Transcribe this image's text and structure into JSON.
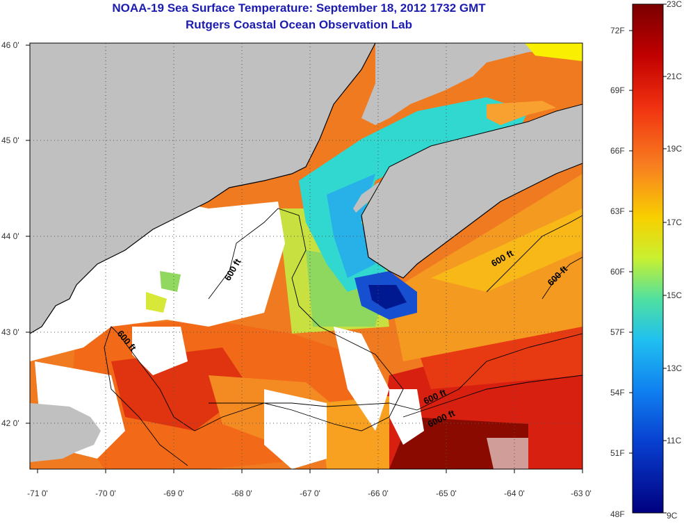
{
  "title": "NOAA-19 Sea Surface Temperature:  September 18, 2012 1732 GMT",
  "subtitle": "Rutgers Coastal Ocean Observation Lab",
  "lat_labels": [
    "46 0'",
    "45 0'",
    "44 0'",
    "43 0'",
    "42 0'"
  ],
  "lon_labels": [
    "-71 0'",
    "-70 0'",
    "-69 0'",
    "-68 0'",
    "-67 0'",
    "-66 0'",
    "-65 0'",
    "-64 0'",
    "-63 0'"
  ],
  "contour_labels": [
    "600 ft",
    "600 ft",
    "600 ft",
    "600 ft",
    "600 ft",
    "6000 ft"
  ],
  "colorbar": {
    "fahrenheit": [
      "72F",
      "69F",
      "66F",
      "63F",
      "60F",
      "57F",
      "54F",
      "51F",
      "48F"
    ],
    "celsius": [
      "23C",
      "21C",
      "19C",
      "17C",
      "15C",
      "13C",
      "11C",
      "9C"
    ],
    "colors": [
      "#7a0000",
      "#c00000",
      "#f03010",
      "#f87820",
      "#f8c000",
      "#e8f000",
      "#a0e060",
      "#40d0c8",
      "#20a8f0",
      "#1060e0",
      "#0020b0",
      "#000080"
    ]
  },
  "colors": {
    "land": "#c0c0c0",
    "cloud": "#ffffff",
    "title": "#1b1bb0"
  }
}
